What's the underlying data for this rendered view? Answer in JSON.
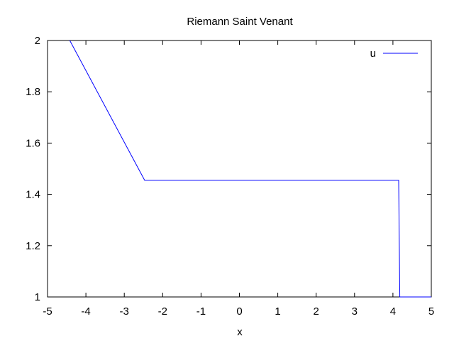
{
  "chart_data": {
    "type": "line",
    "title": "Riemann Saint Venant",
    "xlabel": "x",
    "ylabel": "",
    "xlim": [
      -5,
      5
    ],
    "ylim": [
      1,
      2
    ],
    "x_ticks": [
      "-5",
      "-4",
      "-3",
      "-2",
      "-1",
      "0",
      "1",
      "2",
      "3",
      "4",
      "5"
    ],
    "y_ticks": [
      "1",
      "1.2",
      "1.4",
      "1.6",
      "1.8",
      "2"
    ],
    "grid": false,
    "legend_position": "top-right",
    "series": [
      {
        "name": "u",
        "color": "#0000ff",
        "x": [
          -4.42,
          -2.47,
          4.15,
          4.18,
          5.0
        ],
        "y": [
          2.0,
          1.455,
          1.455,
          1.0,
          1.0
        ]
      }
    ]
  }
}
